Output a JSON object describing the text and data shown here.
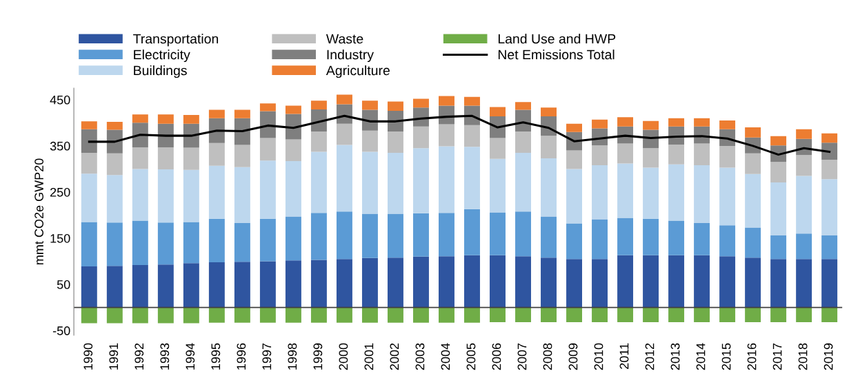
{
  "chart_data": {
    "type": "bar",
    "stacked": true,
    "ylabel": "mmt CO2e GWP20",
    "categories": [
      "1990",
      "1991",
      "1992",
      "1993",
      "1994",
      "1995",
      "1996",
      "1997",
      "1998",
      "1999",
      "2000",
      "2001",
      "2002",
      "2003",
      "2004",
      "2005",
      "2006",
      "2007",
      "2008",
      "2009",
      "2010",
      "2011",
      "2012",
      "2013",
      "2014",
      "2015",
      "2016",
      "2017",
      "2018",
      "2019"
    ],
    "series": [
      {
        "name": "Transportation",
        "color": "#2f55a0",
        "values": [
          89,
          90,
          92,
          93,
          96,
          98,
          99,
          100,
          102,
          103,
          105,
          107,
          108,
          110,
          111,
          113,
          113,
          111,
          108,
          105,
          105,
          113,
          113,
          113,
          113,
          111,
          108,
          105,
          105,
          105
        ]
      },
      {
        "name": "Electricity",
        "color": "#5b9bd5",
        "values": [
          96,
          94,
          96,
          91,
          89,
          94,
          84,
          92,
          95,
          102,
          103,
          96,
          95,
          94,
          94,
          100,
          93,
          97,
          89,
          77,
          86,
          81,
          79,
          75,
          70,
          67,
          65,
          51,
          55,
          51
        ]
      },
      {
        "name": "Buildings",
        "color": "#bdd7ee",
        "values": [
          105,
          103,
          112,
          115,
          113,
          115,
          121,
          126,
          120,
          132,
          144,
          134,
          132,
          141,
          144,
          135,
          116,
          127,
          126,
          118,
          117,
          118,
          111,
          122,
          125,
          125,
          116,
          115,
          125,
          122
        ]
      },
      {
        "name": "Waste",
        "color": "#bfbfbf",
        "values": [
          45,
          47,
          47,
          48,
          48,
          49,
          48,
          49,
          47,
          44,
          46,
          46,
          46,
          47,
          48,
          47,
          45,
          46,
          49,
          40,
          43,
          43,
          42,
          43,
          47,
          47,
          45,
          44,
          45,
          42
        ]
      },
      {
        "name": "Industry",
        "color": "#7f7f7f",
        "values": [
          51,
          51,
          53,
          51,
          52,
          54,
          58,
          58,
          55,
          48,
          42,
          45,
          45,
          41,
          40,
          42,
          47,
          47,
          42,
          40,
          37,
          37,
          40,
          39,
          37,
          36,
          34,
          36,
          35,
          37
        ]
      },
      {
        "name": "Agriculture",
        "color": "#ed7d31",
        "values": [
          17,
          17,
          18,
          20,
          19,
          18,
          18,
          17,
          18,
          19,
          21,
          20,
          20,
          19,
          21,
          19,
          20,
          17,
          19,
          18,
          19,
          20,
          19,
          18,
          18,
          19,
          22,
          20,
          21,
          20
        ]
      },
      {
        "name": "Land Use and HWP",
        "color": "#70ad47",
        "values": [
          -34,
          -34,
          -34,
          -34,
          -34,
          -33,
          -33,
          -33,
          -33,
          -33,
          -33,
          -33,
          -33,
          -33,
          -33,
          -33,
          -32,
          -32,
          -32,
          -32,
          -32,
          -32,
          -32,
          -32,
          -32,
          -32,
          -32,
          -32,
          -32,
          -32
        ]
      },
      {
        "name": "Net Emissions Total",
        "type": "line",
        "color": "#000000",
        "values": [
          359,
          359,
          374,
          372,
          372,
          383,
          382,
          394,
          389,
          402,
          415,
          403,
          403,
          409,
          413,
          415,
          390,
          401,
          389,
          360,
          366,
          372,
          367,
          370,
          371,
          366,
          350,
          331,
          345,
          337
        ]
      }
    ],
    "ylim": [
      -60,
      475
    ],
    "yticks": [
      -50,
      50,
      150,
      250,
      350,
      450
    ],
    "grid": false,
    "legend": "top",
    "marker": "none",
    "line_style": "solid"
  }
}
